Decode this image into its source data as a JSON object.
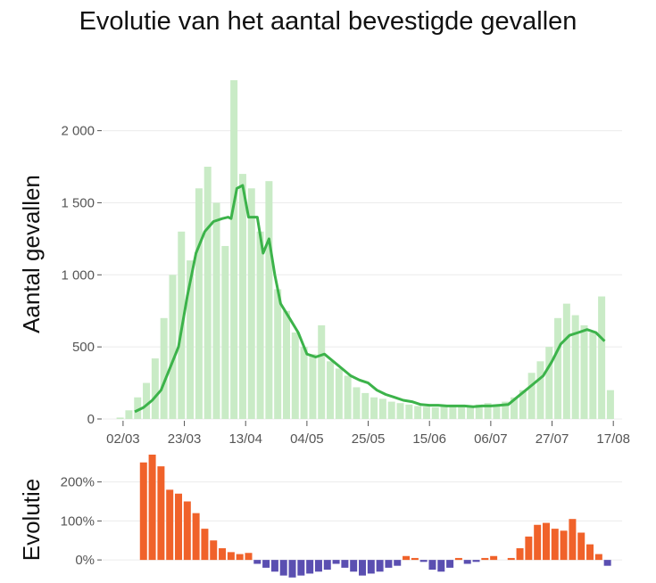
{
  "chart_data": [
    {
      "type": "bar+line",
      "title": "Evolutie van het aantal bevestigde gevallen",
      "xlabel": "",
      "ylabel": "Aantal gevallen",
      "ylim": [
        0,
        2350
      ],
      "yticks": [
        0,
        500,
        1000,
        1500,
        2000
      ],
      "ytick_labels": [
        "0",
        "500",
        "1 000",
        "1 500",
        "2 000"
      ],
      "xticks": [
        "02/03",
        "23/03",
        "13/04",
        "04/05",
        "25/05",
        "15/06",
        "06/07",
        "27/07",
        "17/08"
      ],
      "x_start": "2020-02-24",
      "grid": true,
      "bar_color": "#c9ebc6",
      "line_color": "#3cb34a",
      "series": [
        {
          "type": "bar",
          "dates": [
            "2020-03-01",
            "2020-03-04",
            "2020-03-07",
            "2020-03-10",
            "2020-03-13",
            "2020-03-16",
            "2020-03-19",
            "2020-03-22",
            "2020-03-25",
            "2020-03-28",
            "2020-03-31",
            "2020-04-03",
            "2020-04-06",
            "2020-04-09",
            "2020-04-12",
            "2020-04-15",
            "2020-04-18",
            "2020-04-21",
            "2020-04-24",
            "2020-04-27",
            "2020-04-30",
            "2020-05-03",
            "2020-05-06",
            "2020-05-09",
            "2020-05-12",
            "2020-05-15",
            "2020-05-18",
            "2020-05-21",
            "2020-05-24",
            "2020-05-27",
            "2020-05-30",
            "2020-06-02",
            "2020-06-05",
            "2020-06-08",
            "2020-06-11",
            "2020-06-14",
            "2020-06-17",
            "2020-06-20",
            "2020-06-23",
            "2020-06-26",
            "2020-06-29",
            "2020-07-02",
            "2020-07-05",
            "2020-07-08",
            "2020-07-11",
            "2020-07-14",
            "2020-07-17",
            "2020-07-20",
            "2020-07-23",
            "2020-07-26",
            "2020-07-29",
            "2020-08-01",
            "2020-08-04",
            "2020-08-07",
            "2020-08-10",
            "2020-08-13",
            "2020-08-16"
          ],
          "values": [
            10,
            60,
            150,
            250,
            420,
            700,
            1000,
            1300,
            1100,
            1600,
            1750,
            1500,
            1200,
            2350,
            1700,
            1600,
            1300,
            1650,
            900,
            750,
            600,
            500,
            450,
            650,
            400,
            350,
            300,
            220,
            180,
            150,
            140,
            120,
            110,
            100,
            90,
            85,
            80,
            95,
            90,
            85,
            90,
            100,
            110,
            100,
            120,
            150,
            200,
            320,
            400,
            500,
            700,
            800,
            720,
            650,
            600,
            850,
            200
          ]
        },
        {
          "type": "line",
          "dates": [
            "2020-03-06",
            "2020-03-09",
            "2020-03-12",
            "2020-03-15",
            "2020-03-18",
            "2020-03-21",
            "2020-03-24",
            "2020-03-27",
            "2020-03-30",
            "2020-04-02",
            "2020-04-05",
            "2020-04-07",
            "2020-04-08",
            "2020-04-10",
            "2020-04-12",
            "2020-04-14",
            "2020-04-17",
            "2020-04-19",
            "2020-04-21",
            "2020-04-23",
            "2020-04-25",
            "2020-04-28",
            "2020-05-01",
            "2020-05-04",
            "2020-05-07",
            "2020-05-10",
            "2020-05-13",
            "2020-05-16",
            "2020-05-19",
            "2020-05-22",
            "2020-05-25",
            "2020-05-28",
            "2020-05-31",
            "2020-06-03",
            "2020-06-06",
            "2020-06-09",
            "2020-06-12",
            "2020-06-15",
            "2020-06-18",
            "2020-06-21",
            "2020-06-24",
            "2020-06-27",
            "2020-06-30",
            "2020-07-03",
            "2020-07-06",
            "2020-07-09",
            "2020-07-12",
            "2020-07-15",
            "2020-07-18",
            "2020-07-21",
            "2020-07-24",
            "2020-07-27",
            "2020-07-30",
            "2020-08-02",
            "2020-08-05",
            "2020-08-08",
            "2020-08-11",
            "2020-08-14"
          ],
          "values": [
            50,
            80,
            130,
            200,
            350,
            500,
            850,
            1150,
            1300,
            1370,
            1390,
            1400,
            1390,
            1600,
            1620,
            1400,
            1400,
            1150,
            1250,
            1000,
            800,
            700,
            600,
            450,
            430,
            450,
            400,
            350,
            300,
            270,
            250,
            200,
            170,
            150,
            130,
            120,
            100,
            95,
            95,
            90,
            90,
            90,
            85,
            90,
            90,
            95,
            100,
            150,
            200,
            250,
            300,
            400,
            520,
            580,
            600,
            620,
            600,
            540
          ]
        }
      ]
    },
    {
      "type": "bar",
      "title": "",
      "xlabel": "",
      "ylabel": "Evolutie",
      "ylim": [
        -50,
        270
      ],
      "yticks": [
        0,
        100,
        200
      ],
      "ytick_labels": [
        "0%",
        "100%",
        "200%"
      ],
      "grid": true,
      "positive_color": "#f0622a",
      "negative_color": "#5a4fb1",
      "series": [
        {
          "type": "bar",
          "dates": [
            "2020-03-09",
            "2020-03-12",
            "2020-03-15",
            "2020-03-18",
            "2020-03-21",
            "2020-03-24",
            "2020-03-27",
            "2020-03-30",
            "2020-04-02",
            "2020-04-05",
            "2020-04-08",
            "2020-04-11",
            "2020-04-14",
            "2020-04-17",
            "2020-04-20",
            "2020-04-23",
            "2020-04-26",
            "2020-04-29",
            "2020-05-02",
            "2020-05-05",
            "2020-05-08",
            "2020-05-11",
            "2020-05-14",
            "2020-05-17",
            "2020-05-20",
            "2020-05-23",
            "2020-05-26",
            "2020-05-29",
            "2020-06-01",
            "2020-06-04",
            "2020-06-07",
            "2020-06-10",
            "2020-06-13",
            "2020-06-16",
            "2020-06-19",
            "2020-06-22",
            "2020-06-25",
            "2020-06-28",
            "2020-07-01",
            "2020-07-04",
            "2020-07-07",
            "2020-07-10",
            "2020-07-13",
            "2020-07-16",
            "2020-07-19",
            "2020-07-22",
            "2020-07-25",
            "2020-07-28",
            "2020-07-31",
            "2020-08-03",
            "2020-08-06",
            "2020-08-09",
            "2020-08-12",
            "2020-08-15"
          ],
          "values": [
            250,
            270,
            240,
            180,
            170,
            150,
            120,
            80,
            50,
            30,
            20,
            15,
            18,
            -10,
            -20,
            -30,
            -40,
            -45,
            -40,
            -35,
            -30,
            -25,
            -10,
            -20,
            -30,
            -40,
            -35,
            -30,
            -20,
            -15,
            10,
            5,
            -5,
            -25,
            -30,
            -20,
            5,
            -10,
            -5,
            5,
            10,
            0,
            5,
            30,
            60,
            90,
            95,
            80,
            75,
            105,
            70,
            40,
            15,
            -15
          ]
        }
      ]
    }
  ]
}
